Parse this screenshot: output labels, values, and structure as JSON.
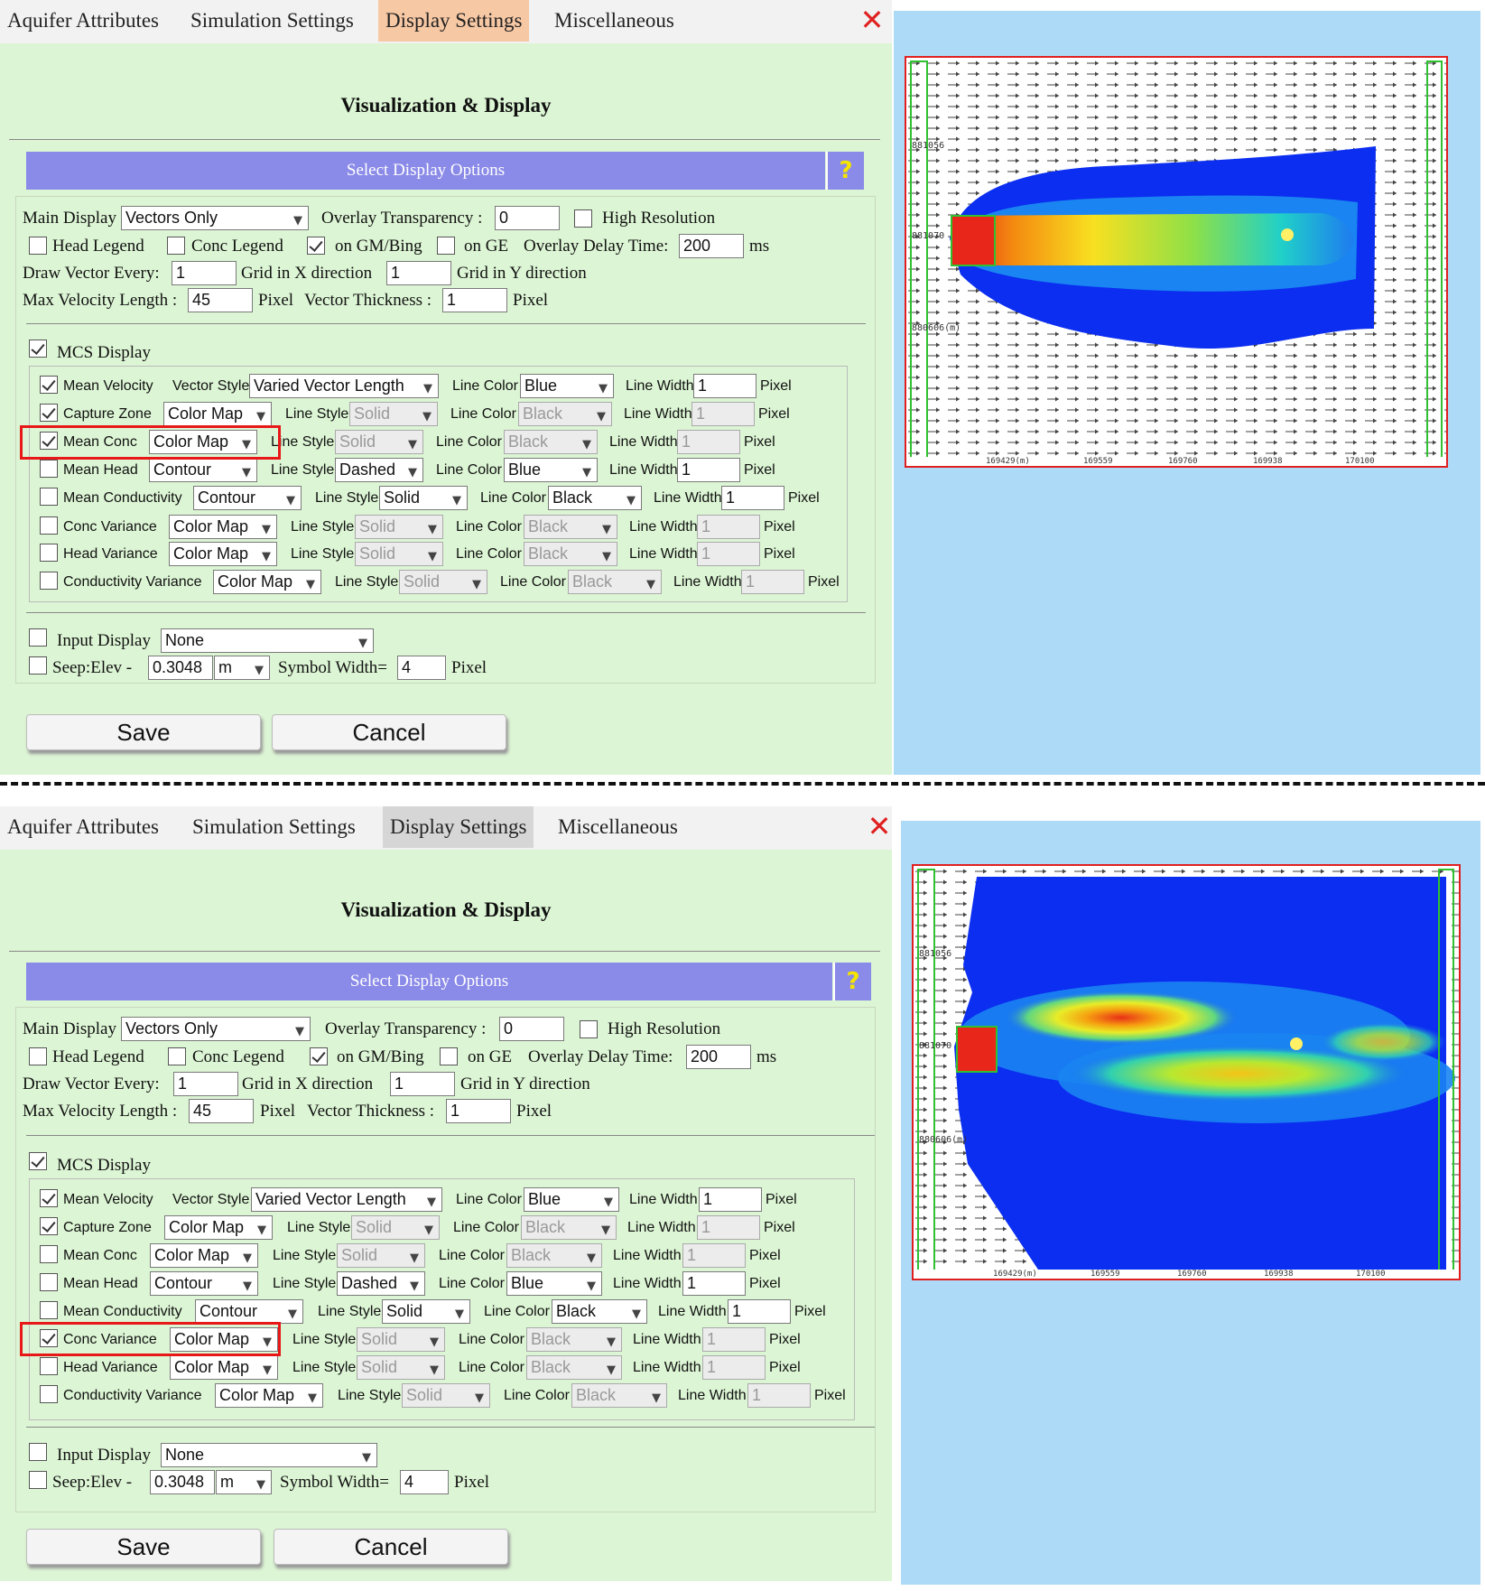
{
  "tabs": [
    "Aquifer Attributes",
    "Simulation Settings",
    "Display Settings",
    "Miscellaneous"
  ],
  "close_icon": "close-x-icon",
  "section_title": "Visualization & Display",
  "options_header": "Select Display Options",
  "help_label": "?",
  "general": {
    "main_display_label": "Main Display",
    "main_display_value": "Vectors Only",
    "overlay_transparency_label": "Overlay Transparency :",
    "overlay_transparency_value": "0",
    "high_resolution_label": "High Resolution",
    "head_legend_label": "Head Legend",
    "conc_legend_label": "Conc Legend",
    "on_gm_bing_label": "on GM/Bing",
    "on_ge_label": "on GE",
    "overlay_delay_label": "Overlay Delay Time:",
    "overlay_delay_value": "200",
    "ms_label": "ms",
    "draw_vector_label": "Draw Vector Every:",
    "draw_vector_value": "1",
    "grid_x_label": "Grid in X direction",
    "grid_x_value": "1",
    "grid_y_label": "Grid in Y direction",
    "max_velocity_label": "Max Velocity Length :",
    "max_velocity_value": "45",
    "pixel_label": "Pixel",
    "vector_thickness_label": "Vector Thickness :",
    "vector_thickness_value": "1"
  },
  "mcs": {
    "label": "MCS Display",
    "vector_style_label": "Vector Style",
    "line_style_label": "Line Style",
    "line_color_label": "Line Color",
    "line_width_label": "Line Width",
    "pixel_label": "Pixel",
    "rows": [
      {
        "label": "Mean Velocity",
        "mode": "Varied Vector Length",
        "style": "",
        "color": "Blue",
        "width": "1"
      },
      {
        "label": "Capture Zone",
        "mode": "Color Map",
        "style": "Solid",
        "color": "Black",
        "width": "1"
      },
      {
        "label": "Mean Conc",
        "mode": "Color Map",
        "style": "Solid",
        "color": "Black",
        "width": "1"
      },
      {
        "label": "Mean Head",
        "mode": "Contour",
        "style": "Dashed",
        "color": "Blue",
        "width": "1"
      },
      {
        "label": "Mean Conductivity",
        "mode": "Contour",
        "style": "Solid",
        "color": "Black",
        "width": "1"
      },
      {
        "label": "Conc Variance",
        "mode": "Color Map",
        "style": "Solid",
        "color": "Black",
        "width": "1"
      },
      {
        "label": "Head Variance",
        "mode": "Color Map",
        "style": "Solid",
        "color": "Black",
        "width": "1"
      },
      {
        "label": "Conductivity Variance",
        "mode": "Color Map",
        "style": "Solid",
        "color": "Black",
        "width": "1"
      }
    ]
  },
  "input_display": {
    "label": "Input Display",
    "value": "None",
    "seep_label": "Seep:Elev -",
    "seep_value": "0.3048",
    "seep_unit": "m",
    "symbol_width_label": "Symbol Width=",
    "symbol_width_value": "4",
    "pixel_label": "Pixel"
  },
  "buttons": {
    "save": "Save",
    "cancel": "Cancel"
  },
  "map_labels": {
    "y_top": "881056",
    "y_mid": "881070",
    "y_low": "880606(m)",
    "x_ticks": [
      "169429(m)",
      "169559",
      "169760",
      "169938",
      "170100"
    ]
  },
  "colors": {
    "dialog_bg": "#dcf5d4",
    "header_bar": "#8a8ae8",
    "active_tab_top": "#f7c8a4",
    "active_tab_bottom": "#d6d6d6",
    "map_bg": "#addaf6",
    "highlight": "#e81818"
  }
}
